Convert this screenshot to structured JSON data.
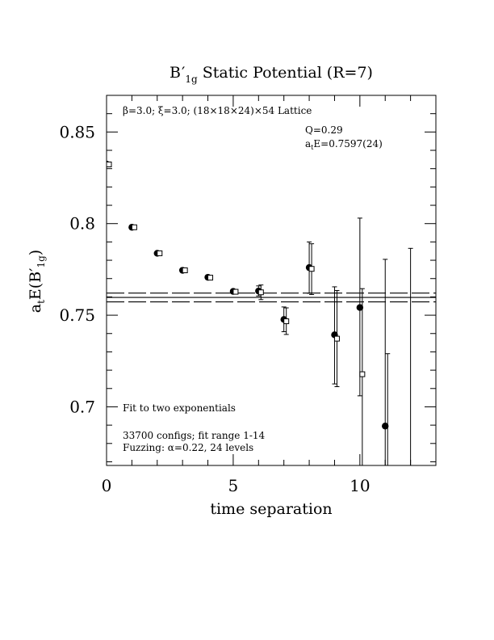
{
  "chart_data": {
    "type": "scatter",
    "title_main": "B",
    "title_prime": "′",
    "title_sub": "1g",
    "title_rest": " Static Potential (R=7)",
    "xlabel": "time separation",
    "ylabel_pre": "a",
    "ylabel_t": "t",
    "ylabel_mid": "E(B",
    "ylabel_prime": "′",
    "ylabel_sub": "1g",
    "ylabel_post": ")",
    "xlim": [
      0,
      13
    ],
    "ylim": [
      0.668,
      0.87
    ],
    "xticks_major": [
      0,
      5,
      10
    ],
    "xtick_labels": [
      "0",
      "5",
      "10"
    ],
    "yticks_major": [
      0.7,
      0.75,
      0.8,
      0.85
    ],
    "ytick_labels": [
      "0.7",
      "0.75",
      "0.8",
      "0.85"
    ],
    "annotations": {
      "lattice": "β=3.0; ξ=3.0; (18×18×24)×54 Lattice",
      "q": "Q=0.29",
      "energy_pre": "a",
      "energy_t": "t",
      "energy_post": "E=0.7597(24)",
      "fit": "Fit to two exponentials",
      "configs": "33700 configs; fit range 1-14",
      "fuzzing": "Fuzzing: α=0.22, 24 levels"
    },
    "fit": {
      "center": 0.7597,
      "upper": 0.7621,
      "lower": 0.7573,
      "x_start": 0,
      "x_end": 13
    },
    "series": [
      {
        "marker": "filled-circle",
        "points": [
          {
            "x": 0,
            "y": 0.8325,
            "lo": 0.8325,
            "hi": 0.8325
          },
          {
            "x": 1,
            "y": 0.798,
            "lo": 0.798,
            "hi": 0.798
          },
          {
            "x": 2,
            "y": 0.7838,
            "lo": 0.7838,
            "hi": 0.7838
          },
          {
            "x": 3,
            "y": 0.7745,
            "lo": 0.7745,
            "hi": 0.7745
          },
          {
            "x": 4,
            "y": 0.7707,
            "lo": 0.7707,
            "hi": 0.7707
          },
          {
            "x": 5,
            "y": 0.763,
            "lo": 0.7622,
            "hi": 0.7638
          },
          {
            "x": 6,
            "y": 0.7632,
            "lo": 0.7605,
            "hi": 0.766
          },
          {
            "x": 7,
            "y": 0.7477,
            "lo": 0.741,
            "hi": 0.7545
          },
          {
            "x": 8,
            "y": 0.776,
            "lo": 0.762,
            "hi": 0.79
          },
          {
            "x": 9,
            "y": 0.7393,
            "lo": 0.7125,
            "hi": 0.7655
          },
          {
            "x": 10,
            "y": 0.7542,
            "lo": 0.706,
            "hi": 0.803
          },
          {
            "x": 11,
            "y": 0.6895,
            "lo": 0.6495,
            "hi": 0.7805
          },
          {
            "x": 12,
            "y": null,
            "lo": 0.65,
            "hi": 0.7865
          }
        ]
      },
      {
        "marker": "open-square",
        "points": [
          {
            "x": 0,
            "y": 0.8323,
            "lo": 0.8318,
            "hi": 0.8328
          },
          {
            "x": 1,
            "y": 0.798,
            "lo": 0.7975,
            "hi": 0.7985
          },
          {
            "x": 2,
            "y": 0.7838,
            "lo": 0.7833,
            "hi": 0.7843
          },
          {
            "x": 3,
            "y": 0.7745,
            "lo": 0.774,
            "hi": 0.775
          },
          {
            "x": 4,
            "y": 0.7705,
            "lo": 0.7699,
            "hi": 0.7711
          },
          {
            "x": 5,
            "y": 0.7628,
            "lo": 0.7618,
            "hi": 0.7638
          },
          {
            "x": 6,
            "y": 0.7625,
            "lo": 0.7585,
            "hi": 0.7665
          },
          {
            "x": 7,
            "y": 0.7467,
            "lo": 0.7395,
            "hi": 0.754
          },
          {
            "x": 8,
            "y": 0.7753,
            "lo": 0.7613,
            "hi": 0.789
          },
          {
            "x": 9,
            "y": 0.7372,
            "lo": 0.711,
            "hi": 0.7635
          },
          {
            "x": 10,
            "y": 0.7178,
            "lo": 0.65,
            "hi": 0.7645
          },
          {
            "x": 11,
            "y": null,
            "lo": 0.66,
            "hi": 0.729
          }
        ]
      }
    ]
  }
}
